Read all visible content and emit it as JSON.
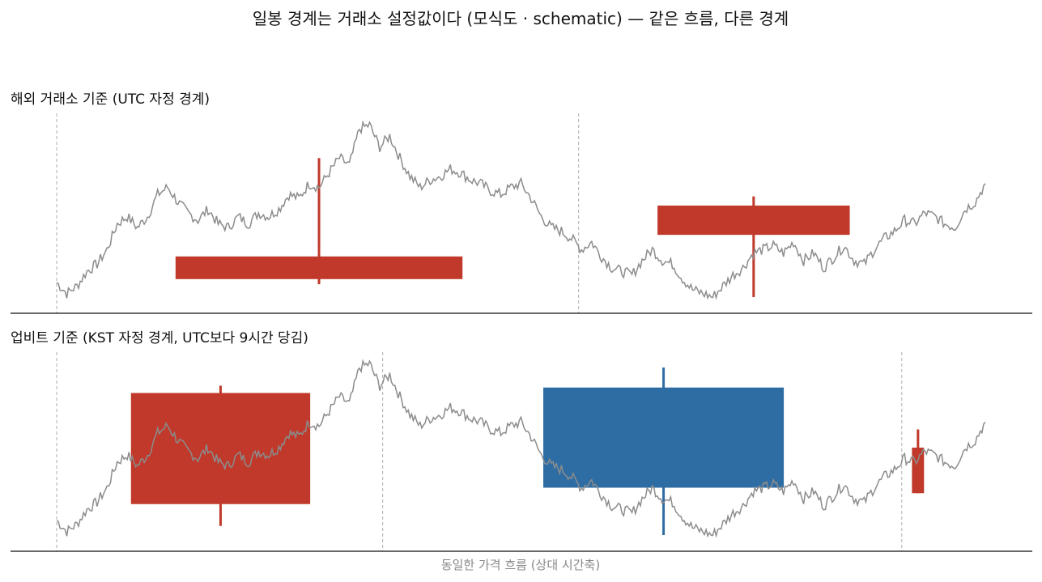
{
  "title": "일봉 경계는 거래소 설정값이다 (모식도 · schematic) — 같은 흐름, 다른 경계",
  "x_axis_label": "동일한 가격 흐름 (상대 시간축)",
  "colors": {
    "price_line": "#8c8c8c",
    "up_candle": "#c0392b",
    "down_candle": "#2e6da4",
    "boundary": "#bbbbbb",
    "axis": "#111111"
  },
  "chart_data": [
    {
      "type": "candlestick",
      "title": "해외 거래소 기준 (UTC 자정 경계)",
      "x_range": [
        0,
        100
      ],
      "y_range": [
        0,
        100
      ],
      "boundaries": [
        0,
        56.2
      ],
      "series": [
        {
          "type": "line",
          "values": [
            12,
            6,
            10,
            18,
            22,
            30,
            44,
            48,
            42,
            48,
            60,
            64,
            56,
            50,
            46,
            52,
            44,
            42,
            48,
            44,
            50,
            48,
            52,
            60,
            58,
            66,
            64,
            72,
            80,
            76,
            96,
            98,
            86,
            92,
            80,
            70,
            64,
            68,
            70,
            74,
            72,
            68,
            66,
            62,
            60,
            64,
            66,
            58,
            48,
            42,
            40,
            36,
            30,
            34,
            26,
            20,
            18,
            16,
            24,
            30,
            24,
            22,
            14,
            8,
            6,
            4,
            10,
            16,
            20,
            28,
            30,
            32,
            28,
            34,
            24,
            28,
            20,
            26,
            32,
            24,
            22,
            30,
            36,
            40,
            46,
            44,
            50,
            48,
            44,
            42,
            52,
            56,
            66
          ]
        }
      ],
      "candles": [
        {
          "x_start": 12.8,
          "x_end": 43.7,
          "open": 20,
          "close": 20,
          "high": 80,
          "low": 11,
          "dir": "up"
        },
        {
          "x_start": 64.7,
          "x_end": 85.4,
          "open": 38,
          "close": 54,
          "high": 59,
          "low": 4,
          "dir": "up"
        }
      ]
    },
    {
      "type": "candlestick",
      "title": "업비트 기준 (KST 자정 경계, UTC보다 9시간 당김)",
      "x_range": [
        0,
        100
      ],
      "y_range": [
        0,
        100
      ],
      "boundaries": [
        0,
        35.1,
        91.0
      ],
      "series": [
        {
          "type": "line",
          "values": [
            12,
            6,
            10,
            18,
            22,
            30,
            44,
            48,
            42,
            48,
            60,
            64,
            56,
            50,
            46,
            52,
            44,
            42,
            48,
            44,
            50,
            48,
            52,
            60,
            58,
            66,
            64,
            72,
            80,
            76,
            96,
            98,
            86,
            92,
            80,
            70,
            64,
            68,
            70,
            74,
            72,
            68,
            66,
            62,
            60,
            64,
            66,
            58,
            48,
            42,
            40,
            36,
            30,
            34,
            26,
            20,
            18,
            16,
            24,
            30,
            24,
            22,
            14,
            8,
            6,
            4,
            10,
            16,
            20,
            28,
            30,
            32,
            28,
            34,
            24,
            28,
            20,
            26,
            32,
            24,
            22,
            30,
            36,
            40,
            46,
            44,
            50,
            48,
            44,
            42,
            52,
            56,
            66
          ]
        }
      ],
      "candles": [
        {
          "x_start": 8.0,
          "x_end": 27.3,
          "open": 21,
          "close": 82,
          "high": 86,
          "low": 9,
          "dir": "up"
        },
        {
          "x_start": 52.4,
          "x_end": 78.3,
          "open": 85,
          "close": 30,
          "high": 96,
          "low": 4,
          "dir": "down"
        },
        {
          "x_start": 92.1,
          "x_end": 93.4,
          "open": 27,
          "close": 52,
          "high": 62,
          "low": 27,
          "dir": "up"
        }
      ]
    }
  ]
}
